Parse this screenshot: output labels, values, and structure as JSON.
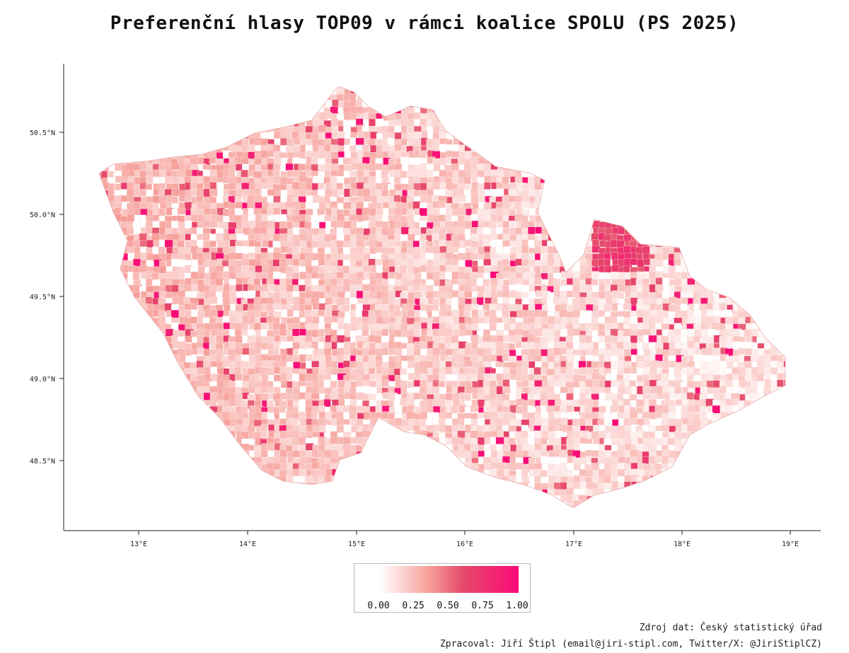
{
  "title": "Preferenční hlasy TOP09 v rámci koalice SPOLU (PS 2025)",
  "map": {
    "x_ticks": [
      "13°E",
      "14°E",
      "15°E",
      "16°E",
      "17°E",
      "18°E",
      "19°E"
    ],
    "y_ticks": [
      "50.5°N",
      "50.0°N",
      "49.5°N",
      "49.0°N",
      "48.5°N"
    ],
    "colors": {
      "low": "#ffffff",
      "mid": "#f7a09a",
      "high": "#e54a6a",
      "max": "#fb0a78"
    }
  },
  "legend": {
    "labels": [
      "0.00",
      "0.25",
      "0.50",
      "0.75",
      "1.00"
    ]
  },
  "footer": {
    "source": "Zdroj dat: Český statistický úřad",
    "author": "Zpracoval: Jiří Štipl (email@jiri-stipl.com, Twitter/X: @JiriStiplCZ)"
  }
}
